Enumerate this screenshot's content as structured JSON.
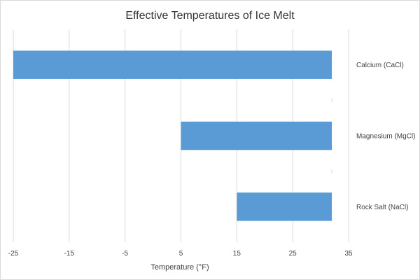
{
  "chart_data": {
    "type": "bar",
    "orientation": "horizontal",
    "title": "Effective Temperatures of Ice Melt",
    "xlabel": "Temperature (°F)",
    "ylabel": "",
    "xlim": [
      -25,
      35
    ],
    "xticks": [
      -25,
      -15,
      -5,
      5,
      15,
      25,
      35
    ],
    "grid": true,
    "bar_color": "#5b9bd5",
    "categories": [
      "Calcium (CaCl)",
      "Magnesium (MgCl)",
      "Rock Salt (NaCl)"
    ],
    "values": [
      {
        "start": -25,
        "end": 32
      },
      {
        "start": 5,
        "end": 32
      },
      {
        "start": 15,
        "end": 32
      }
    ]
  }
}
